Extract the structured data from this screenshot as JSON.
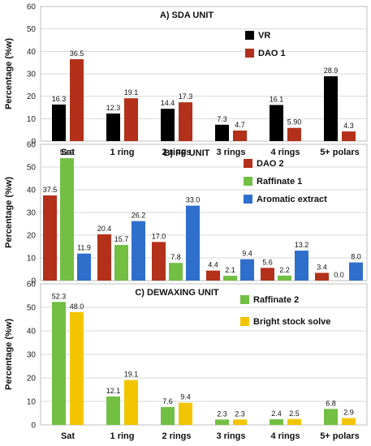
{
  "chart_data": [
    {
      "type": "bar",
      "title": "A) SDA UNIT",
      "ylabel": "Percentage (%w)",
      "ylim": [
        0,
        60
      ],
      "yticks": [
        0,
        10,
        20,
        30,
        40,
        50,
        60
      ],
      "grid": true,
      "legend_position": "top-right",
      "categories": [
        "Sat",
        "1 ring",
        "2 rings",
        "3 rings",
        "4 rings",
        "5+ polars"
      ],
      "series": [
        {
          "name": "VR",
          "color": "#000000",
          "values": [
            16.3,
            12.3,
            14.4,
            7.3,
            16.1,
            28.9
          ],
          "labels": [
            "16.3",
            "12.3",
            "14.4",
            "7.3",
            "16.1",
            "28.9"
          ]
        },
        {
          "name": "DAO  1",
          "color": "#B3301A",
          "values": [
            36.5,
            19.1,
            17.3,
            4.7,
            5.9,
            4.3
          ],
          "labels": [
            "36.5",
            "19.1",
            "17.3",
            "4.7",
            "5.90",
            "4.3"
          ]
        }
      ]
    },
    {
      "type": "bar",
      "title": "B) FF UNIT",
      "ylabel": "Percentage (%w)",
      "ylim": [
        0,
        60
      ],
      "yticks": [
        0,
        10,
        20,
        30,
        40,
        50,
        60
      ],
      "grid": true,
      "legend_position": "top-right",
      "categories": [
        "Sat",
        "1 ring",
        "2 rings",
        "3 rings",
        "4 rings",
        "5+ polars"
      ],
      "series": [
        {
          "name": "DAO  2",
          "color": "#B3301A",
          "values": [
            37.5,
            20.4,
            17.0,
            4.4,
            5.6,
            3.4
          ],
          "labels": [
            "37.5",
            "20.4",
            "17.0",
            "4.4",
            "5.6",
            "3.4"
          ]
        },
        {
          "name": "Raffinate  1",
          "color": "#72BF44",
          "values": [
            53.9,
            15.7,
            7.8,
            2.1,
            2.2,
            0.0
          ],
          "labels": [
            "53.9",
            "15.7",
            "7.8",
            "2.1",
            "2.2",
            "0.0"
          ]
        },
        {
          "name": "Aromatic extract",
          "color": "#2E6FCB",
          "values": [
            11.9,
            26.2,
            33.0,
            9.4,
            13.2,
            8.0
          ],
          "labels": [
            "11.9",
            "26.2",
            "33.0",
            "9.4",
            "13.2",
            "8.0"
          ]
        }
      ]
    },
    {
      "type": "bar",
      "title": "C) DEWAXING UNIT",
      "ylabel": "Percentage (%w)",
      "ylim": [
        0,
        60
      ],
      "yticks": [
        0,
        10,
        20,
        30,
        40,
        50,
        60
      ],
      "grid": true,
      "legend_position": "top-right",
      "categories": [
        "Sat",
        "1 ring",
        "2 rings",
        "3 rings",
        "4 rings",
        "5+ polars"
      ],
      "series": [
        {
          "name": "Raffinate 2",
          "color": "#72BF44",
          "values": [
            52.3,
            12.1,
            7.6,
            2.3,
            2.4,
            6.8
          ],
          "labels": [
            "52.3",
            "12.1",
            "7.6",
            "2.3",
            "2.4",
            "6.8"
          ]
        },
        {
          "name": "Bright stock solve",
          "color": "#F2C500",
          "values": [
            48.0,
            19.1,
            9.4,
            2.3,
            2.5,
            2.9
          ],
          "labels": [
            "48.0",
            "19.1",
            "9.4",
            "2.3",
            "2.5",
            "2.9"
          ]
        }
      ]
    }
  ]
}
